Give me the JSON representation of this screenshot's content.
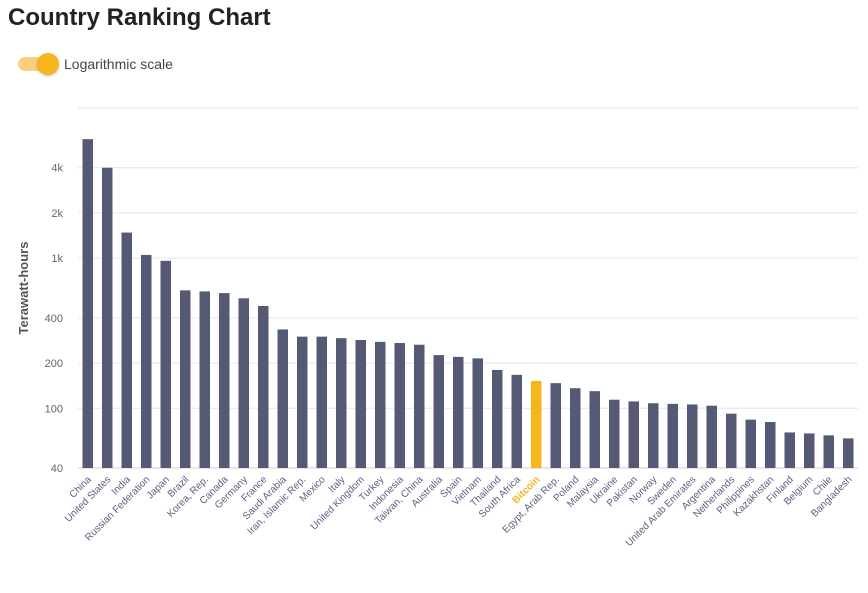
{
  "page": {
    "title": "Country Ranking Chart"
  },
  "controls": {
    "log_toggle": {
      "label": "Logarithmic scale",
      "checked": true
    }
  },
  "colors": {
    "bar": "#545a73",
    "highlight": "#f7b51c",
    "grid": "#e6e6e6",
    "tick_text": "#666666",
    "category_text": "#5a5f82",
    "highlight_text": "#f7b51c",
    "axis_label": "#555555"
  },
  "chart_data": {
    "type": "bar",
    "title": "Country Ranking Chart",
    "xlabel": "",
    "ylabel": "Terawatt-hours",
    "yscale": "log",
    "ylim": [
      40,
      10000
    ],
    "yticks": [
      40,
      100,
      200,
      400,
      1000,
      2000,
      4000
    ],
    "ytick_labels": [
      "40",
      "100",
      "200",
      "400",
      "1k",
      "2k",
      "4k"
    ],
    "grid": true,
    "highlight_category": "Bitcoin",
    "categories": [
      "China",
      "United States",
      "India",
      "Russian Federation",
      "Japan",
      "Brazil",
      "Korea, Rep.",
      "Canada",
      "Germany",
      "France",
      "Saudi Arabia",
      "Iran, Islamic Rep.",
      "Mexico",
      "Italy",
      "United Kingdom",
      "Turkey",
      "Indonesia",
      "Taiwan, China",
      "Australia",
      "Spain",
      "Vietnam",
      "Thailand",
      "South Africa",
      "Bitcoin",
      "Egypt, Arab Rep.",
      "Poland",
      "Malaysia",
      "Ukraine",
      "Pakistan",
      "Norway",
      "Sweden",
      "United Arab Emirates",
      "Argentina",
      "Netherlands",
      "Philippines",
      "Kazakhstan",
      "Finland",
      "Belgium",
      "Chile",
      "Bangladesh"
    ],
    "values": [
      6200,
      4000,
      1480,
      1050,
      960,
      610,
      600,
      585,
      540,
      480,
      335,
      300,
      300,
      293,
      285,
      277,
      272,
      265,
      226,
      220,
      215,
      180,
      167,
      152,
      147,
      136,
      130,
      114,
      111,
      108,
      107,
      106,
      104,
      92,
      84,
      81,
      69,
      68,
      66,
      63
    ]
  }
}
